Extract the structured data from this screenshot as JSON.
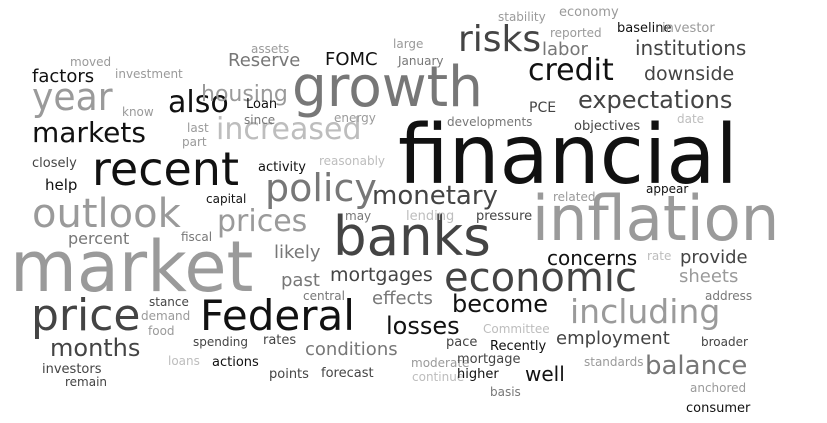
{
  "shade_colors": [
    "#111111",
    "#444444",
    "#777777",
    "#9a9a9a",
    "#bdbdbd"
  ],
  "words": [
    {
      "text": "financial",
      "shade": 0
    },
    {
      "text": "inflation",
      "shade": 3
    },
    {
      "text": "market",
      "shade": 3
    },
    {
      "text": "growth",
      "shade": 2
    },
    {
      "text": "banks",
      "shade": 1
    },
    {
      "text": "recent",
      "shade": 0
    },
    {
      "text": "outlook",
      "shade": 3
    },
    {
      "text": "Federal",
      "shade": 0
    },
    {
      "text": "price",
      "shade": 1
    },
    {
      "text": "policy",
      "shade": 2
    },
    {
      "text": "economic",
      "shade": 1
    },
    {
      "text": "including",
      "shade": 3
    },
    {
      "text": "year",
      "shade": 3
    },
    {
      "text": "increased",
      "shade": 4
    },
    {
      "text": "prices",
      "shade": 3
    },
    {
      "text": "credit",
      "shade": 0
    },
    {
      "text": "risks",
      "shade": 1
    },
    {
      "text": "markets",
      "shade": 0
    },
    {
      "text": "also",
      "shade": 0
    },
    {
      "text": "monetary",
      "shade": 1
    },
    {
      "text": "expectations",
      "shade": 1
    },
    {
      "text": "months",
      "shade": 1
    },
    {
      "text": "balance",
      "shade": 2
    },
    {
      "text": "losses",
      "shade": 0
    },
    {
      "text": "become",
      "shade": 0
    },
    {
      "text": "concerns",
      "shade": 0
    },
    {
      "text": "housing",
      "shade": 3
    },
    {
      "text": "institutions",
      "shade": 1
    },
    {
      "text": "downside",
      "shade": 1
    },
    {
      "text": "mortgages",
      "shade": 1
    },
    {
      "text": "employment",
      "shade": 1
    },
    {
      "text": "conditions",
      "shade": 2
    },
    {
      "text": "effects",
      "shade": 2
    },
    {
      "text": "percent",
      "shade": 2
    },
    {
      "text": "likely",
      "shade": 2
    },
    {
      "text": "past",
      "shade": 2
    },
    {
      "text": "sheets",
      "shade": 3
    },
    {
      "text": "provide",
      "shade": 1
    },
    {
      "text": "well",
      "shade": 0
    },
    {
      "text": "factors",
      "shade": 0
    },
    {
      "text": "FOMC",
      "shade": 0
    },
    {
      "text": "Reserve",
      "shade": 2
    },
    {
      "text": "labor",
      "shade": 2
    },
    {
      "text": "help",
      "shade": 0
    },
    {
      "text": "stability",
      "shade": 3
    },
    {
      "text": "economy",
      "shade": 3
    },
    {
      "text": "baseline",
      "shade": 0
    },
    {
      "text": "investor",
      "shade": 3
    },
    {
      "text": "reported",
      "shade": 3
    },
    {
      "text": "assets",
      "shade": 3
    },
    {
      "text": "large",
      "shade": 3
    },
    {
      "text": "January",
      "shade": 2
    },
    {
      "text": "moved",
      "shade": 3
    },
    {
      "text": "investment",
      "shade": 3
    },
    {
      "text": "know",
      "shade": 3
    },
    {
      "text": "Loan",
      "shade": 0
    },
    {
      "text": "since",
      "shade": 2
    },
    {
      "text": "energy",
      "shade": 3
    },
    {
      "text": "PCE",
      "shade": 1
    },
    {
      "text": "developments",
      "shade": 2
    },
    {
      "text": "date",
      "shade": 4
    },
    {
      "text": "objectives",
      "shade": 1
    },
    {
      "text": "last",
      "shade": 3
    },
    {
      "text": "part",
      "shade": 3
    },
    {
      "text": "closely",
      "shade": 1
    },
    {
      "text": "activity",
      "shade": 0
    },
    {
      "text": "reasonably",
      "shade": 4
    },
    {
      "text": "capital",
      "shade": 0
    },
    {
      "text": "may",
      "shade": 2
    },
    {
      "text": "lending",
      "shade": 4
    },
    {
      "text": "pressure",
      "shade": 1
    },
    {
      "text": "related",
      "shade": 3
    },
    {
      "text": "appear",
      "shade": 0
    },
    {
      "text": "fiscal",
      "shade": 2
    },
    {
      "text": "rate",
      "shade": 4
    },
    {
      "text": "central",
      "shade": 2
    },
    {
      "text": "address",
      "shade": 2
    },
    {
      "text": "stance",
      "shade": 1
    },
    {
      "text": "demand",
      "shade": 3
    },
    {
      "text": "food",
      "shade": 3
    },
    {
      "text": "Committee",
      "shade": 4
    },
    {
      "text": "spending",
      "shade": 1
    },
    {
      "text": "rates",
      "shade": 1
    },
    {
      "text": "pace",
      "shade": 1
    },
    {
      "text": "Recently",
      "shade": 0
    },
    {
      "text": "broader",
      "shade": 1
    },
    {
      "text": "loans",
      "shade": 4
    },
    {
      "text": "actions",
      "shade": 0
    },
    {
      "text": "moderate",
      "shade": 3
    },
    {
      "text": "mortgage",
      "shade": 1
    },
    {
      "text": "standards",
      "shade": 3
    },
    {
      "text": "investors",
      "shade": 1
    },
    {
      "text": "points",
      "shade": 1
    },
    {
      "text": "forecast",
      "shade": 1
    },
    {
      "text": "continue",
      "shade": 4
    },
    {
      "text": "higher",
      "shade": 0
    },
    {
      "text": "remain",
      "shade": 1
    },
    {
      "text": "basis",
      "shade": 2
    },
    {
      "text": "anchored",
      "shade": 3
    },
    {
      "text": "consumer",
      "shade": 0
    }
  ]
}
